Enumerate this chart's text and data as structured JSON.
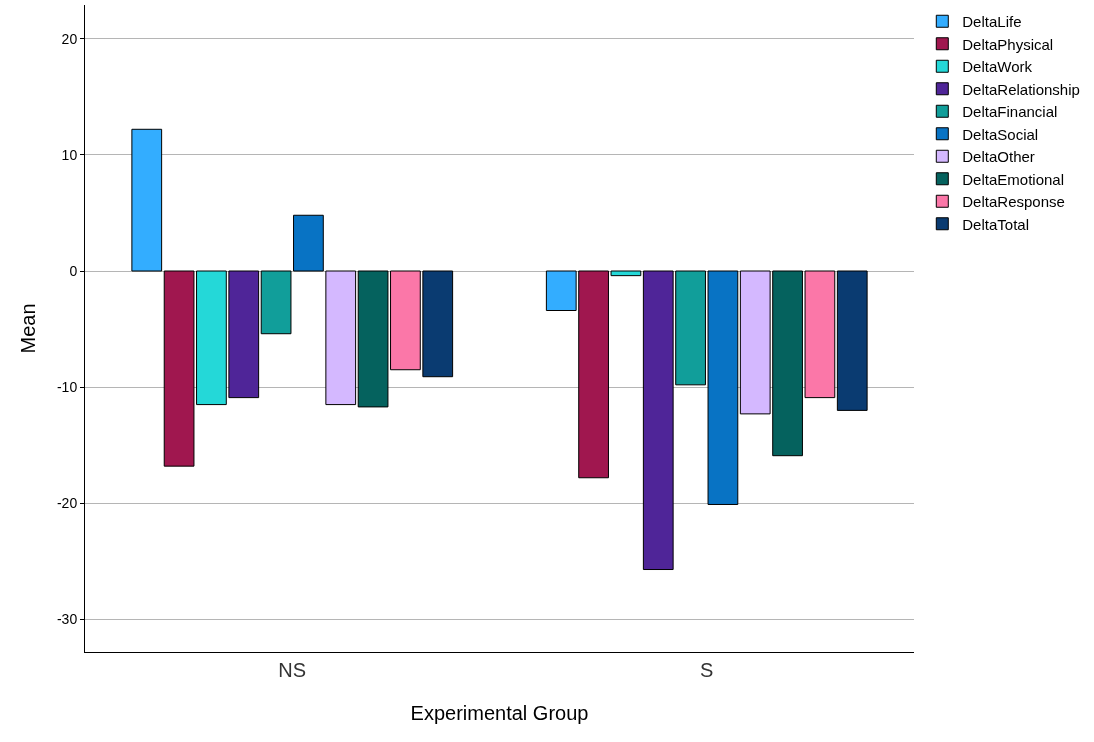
{
  "chart_data": {
    "type": "bar",
    "xlabel": "Experimental Group",
    "ylabel": "Mean",
    "categories": [
      "NS",
      "S"
    ],
    "series": [
      {
        "name": "DeltaLife",
        "color": "#33adff",
        "values": [
          12.2,
          -3.4
        ]
      },
      {
        "name": "DeltaPhysical",
        "color": "#a0174f",
        "values": [
          -16.8,
          -17.8
        ]
      },
      {
        "name": "DeltaWork",
        "color": "#24d8d8",
        "values": [
          -11.5,
          -0.4
        ]
      },
      {
        "name": "DeltaRelationship",
        "color": "#4f2598",
        "values": [
          -10.9,
          -25.7
        ]
      },
      {
        "name": "DeltaFinancial",
        "color": "#119e9a",
        "values": [
          -5.4,
          -9.8
        ]
      },
      {
        "name": "DeltaSocial",
        "color": "#0873c4",
        "values": [
          4.8,
          -20.1
        ]
      },
      {
        "name": "DeltaOther",
        "color": "#d4b8ff",
        "values": [
          -11.5,
          -12.3
        ]
      },
      {
        "name": "DeltaEmotional",
        "color": "#05625e",
        "values": [
          -11.7,
          -15.9
        ]
      },
      {
        "name": "DeltaResponse",
        "color": "#fb77a8",
        "values": [
          -8.5,
          -10.9
        ]
      },
      {
        "name": "DeltaTotal",
        "color": "#0a3b71",
        "values": [
          -9.1,
          -12.0
        ]
      }
    ],
    "ylim": [
      -32.8,
      22.9
    ],
    "yticks": [
      -30,
      -20,
      -10,
      0,
      10,
      20
    ],
    "grid": "y",
    "legend": "top right"
  }
}
